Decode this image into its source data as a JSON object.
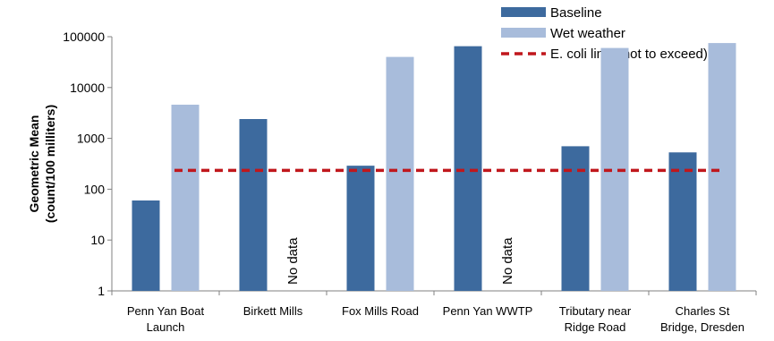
{
  "chart_data": {
    "type": "bar",
    "yscale": "log",
    "ylim": [
      1,
      100000
    ],
    "yticks": [
      "1",
      "10",
      "100",
      "1000",
      "10000",
      "100000"
    ],
    "ylabel": [
      "Geometric Mean",
      "(count/100 milliters)"
    ],
    "categories": [
      [
        "Penn Yan Boat",
        "Launch"
      ],
      [
        "Birkett Mills"
      ],
      [
        "Fox Mills Road"
      ],
      [
        "Penn Yan WWTP"
      ],
      [
        "Tributary near",
        "Ridge Road"
      ],
      [
        "Charles St",
        "Bridge, Dresden"
      ]
    ],
    "series": [
      {
        "name": "Baseline",
        "color": "#3d6a9e",
        "values": [
          60,
          2400,
          290,
          65000,
          700,
          530
        ]
      },
      {
        "name": "Wet weather",
        "color": "#a8bcdb",
        "values": [
          4600,
          null,
          40000,
          null,
          60000,
          75000
        ]
      }
    ],
    "nodata_label": "No data",
    "limit_line": {
      "name": "E. coli limit (not to exceed)",
      "value": 235,
      "color": "#c0171c"
    },
    "legend": "top-right",
    "grid": false
  }
}
